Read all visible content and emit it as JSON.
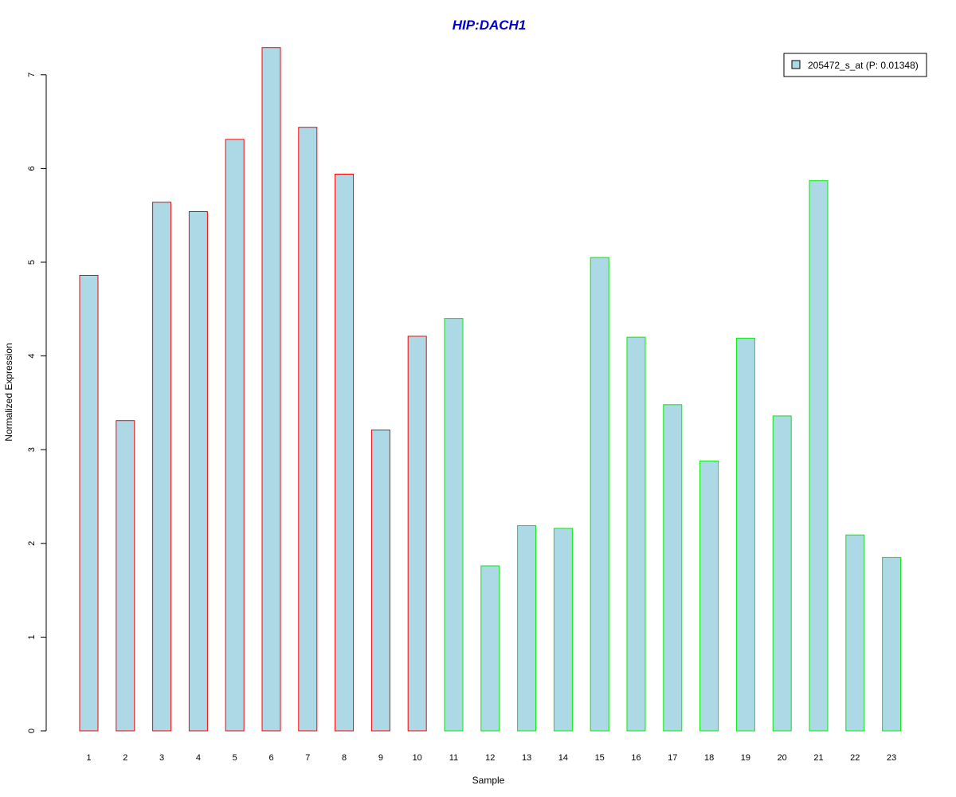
{
  "chart_data": {
    "type": "bar",
    "title": "HIP:DACH1",
    "xlabel": "Sample",
    "ylabel": "Normalized Expression",
    "ylim": [
      0,
      7.3
    ],
    "yticks": [
      0,
      1,
      2,
      3,
      4,
      5,
      6,
      7
    ],
    "categories": [
      "1",
      "2",
      "3",
      "4",
      "5",
      "6",
      "7",
      "8",
      "9",
      "10",
      "11",
      "12",
      "13",
      "14",
      "15",
      "16",
      "17",
      "18",
      "19",
      "20",
      "21",
      "22",
      "23"
    ],
    "series": [
      {
        "name": "205472_s_at (P: 0.01348)",
        "values": [
          4.86,
          3.31,
          5.64,
          5.54,
          6.31,
          7.29,
          6.44,
          5.94,
          3.21,
          4.21,
          4.4,
          1.76,
          2.19,
          2.16,
          5.05,
          4.2,
          3.48,
          2.88,
          4.19,
          3.36,
          5.87,
          2.09,
          1.85
        ]
      }
    ],
    "group_outline": [
      "red",
      "red",
      "red",
      "red",
      "red",
      "red",
      "red",
      "red",
      "red",
      "red",
      "green",
      "green",
      "green",
      "green",
      "green",
      "green",
      "green",
      "green",
      "green",
      "green",
      "green",
      "green",
      "green"
    ],
    "legend": {
      "placement": "top-right",
      "entries": [
        "205472_s_at (P: 0.01348)"
      ]
    },
    "grid": false
  },
  "colors": {
    "title": "#0000cc",
    "bar_fill": "#add8e6",
    "outline_red": "#ff0000",
    "outline_green": "#00ee00",
    "axis": "#000000"
  }
}
